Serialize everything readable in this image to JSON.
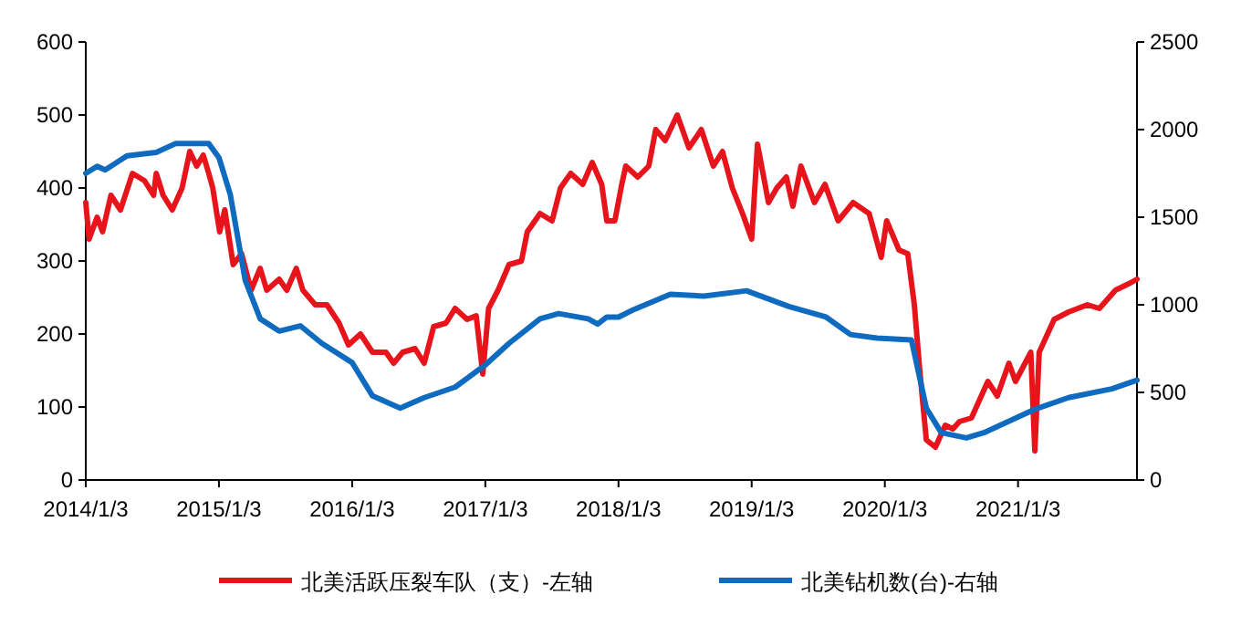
{
  "chart_data": {
    "type": "line",
    "legend": "bottom",
    "grid": false,
    "xlim": [
      "2014-01-03",
      "2021-11-25"
    ],
    "xticks": [
      {
        "value": "2014-01-03",
        "label": "2014/1/3"
      },
      {
        "value": "2015-01-03",
        "label": "2015/1/3"
      },
      {
        "value": "2016-01-03",
        "label": "2016/1/3"
      },
      {
        "value": "2017-01-03",
        "label": "2017/1/3"
      },
      {
        "value": "2018-01-03",
        "label": "2018/1/3"
      },
      {
        "value": "2019-01-03",
        "label": "2019/1/3"
      },
      {
        "value": "2020-01-03",
        "label": "2020/1/3"
      },
      {
        "value": "2021-01-03",
        "label": "2021/1/3"
      }
    ],
    "ylim": [
      0,
      600
    ],
    "yticks": [
      0,
      100,
      200,
      300,
      400,
      500,
      600
    ],
    "y2lim": [
      0,
      2500
    ],
    "y2ticks": [
      0,
      500,
      1000,
      1500,
      2000,
      2500
    ],
    "series": [
      {
        "name": "北美活跃压裂车队（支）-左轴",
        "color": "#e8141c",
        "x": [
          "2014-01-03",
          "2014-01-12",
          "2014-02-03",
          "2014-02-18",
          "2014-03-13",
          "2014-04-08",
          "2014-05-11",
          "2014-06-13",
          "2014-07-08",
          "2014-07-15",
          "2014-08-03",
          "2014-08-28",
          "2014-09-24",
          "2014-10-15",
          "2014-11-03",
          "2014-11-21",
          "2014-12-06",
          "2014-12-17",
          "2015-01-05",
          "2015-01-19",
          "2015-02-11",
          "2015-03-06",
          "2015-04-01",
          "2015-04-26",
          "2015-05-14",
          "2015-06-17",
          "2015-07-08",
          "2015-08-03",
          "2015-08-21",
          "2015-09-24",
          "2015-10-26",
          "2015-11-28",
          "2015-12-24",
          "2016-01-26",
          "2016-02-28",
          "2016-04-05",
          "2016-04-26",
          "2016-05-21",
          "2016-06-24",
          "2016-07-19",
          "2016-08-14",
          "2016-09-17",
          "2016-10-12",
          "2016-11-14",
          "2016-12-09",
          "2016-12-27",
          "2017-01-12",
          "2017-02-07",
          "2017-03-09",
          "2017-04-12",
          "2017-04-28",
          "2017-06-02",
          "2017-07-05",
          "2017-07-28",
          "2017-08-25",
          "2017-09-27",
          "2017-10-23",
          "2017-11-18",
          "2017-12-02",
          "2017-12-24",
          "2018-01-12",
          "2018-01-23",
          "2018-02-25",
          "2018-03-27",
          "2018-04-15",
          "2018-05-11",
          "2018-06-13",
          "2018-07-15",
          "2018-08-18",
          "2018-09-20",
          "2018-10-15",
          "2018-11-11",
          "2018-12-09",
          "2019-01-03",
          "2019-01-19",
          "2019-02-18",
          "2019-03-13",
          "2019-04-08",
          "2019-04-26",
          "2019-05-18",
          "2019-06-24",
          "2019-07-23",
          "2019-08-28",
          "2019-10-08",
          "2019-11-21",
          "2019-12-24",
          "2020-01-08",
          "2020-02-11",
          "2020-03-06",
          "2020-03-24",
          "2020-04-08",
          "2020-04-26",
          "2020-05-21",
          "2020-06-17",
          "2020-07-08",
          "2020-07-26",
          "2020-08-28",
          "2020-10-12",
          "2020-11-07",
          "2020-12-09",
          "2020-12-27",
          "2021-02-07",
          "2021-02-18",
          "2021-03-02",
          "2021-04-12",
          "2021-05-21",
          "2021-07-12",
          "2021-08-14",
          "2021-09-27",
          "2021-11-07",
          "2021-11-25"
        ],
        "values": [
          380,
          330,
          360,
          340,
          390,
          370,
          420,
          410,
          390,
          420,
          390,
          370,
          400,
          450,
          430,
          445,
          420,
          400,
          340,
          370,
          295,
          310,
          260,
          290,
          260,
          275,
          260,
          290,
          260,
          240,
          240,
          215,
          185,
          200,
          175,
          175,
          160,
          175,
          180,
          160,
          210,
          215,
          235,
          220,
          225,
          145,
          235,
          260,
          295,
          300,
          340,
          365,
          355,
          400,
          420,
          405,
          435,
          405,
          355,
          355,
          405,
          430,
          415,
          430,
          480,
          465,
          500,
          455,
          480,
          430,
          450,
          400,
          365,
          330,
          460,
          380,
          400,
          415,
          375,
          430,
          380,
          405,
          355,
          380,
          365,
          305,
          355,
          315,
          310,
          240,
          150,
          55,
          45,
          75,
          70,
          80,
          85,
          135,
          115,
          160,
          135,
          175,
          40,
          175,
          220,
          230,
          240,
          235,
          260,
          270,
          275
        ]
      },
      {
        "name": "北美钻机数(台)-右轴",
        "color": "#0f6bbf",
        "axis": "y2",
        "x": [
          "2014-01-03",
          "2014-02-03",
          "2014-02-25",
          "2014-04-26",
          "2014-07-15",
          "2014-09-06",
          "2014-12-06",
          "2015-01-03",
          "2015-02-03",
          "2015-03-16",
          "2015-04-26",
          "2015-06-17",
          "2015-08-14",
          "2015-10-12",
          "2016-01-03",
          "2016-02-28",
          "2016-05-14",
          "2016-07-19",
          "2016-10-12",
          "2017-01-05",
          "2017-03-09",
          "2017-06-02",
          "2017-07-23",
          "2017-10-12",
          "2017-11-07",
          "2017-12-02",
          "2018-01-03",
          "2018-02-11",
          "2018-05-25",
          "2018-08-25",
          "2018-12-20",
          "2019-04-15",
          "2019-07-26",
          "2019-10-01",
          "2019-12-13",
          "2020-03-16",
          "2020-04-26",
          "2020-06-06",
          "2020-08-14",
          "2020-10-01",
          "2021-02-14",
          "2021-05-21",
          "2021-09-17",
          "2021-11-25"
        ],
        "values": [
          1750,
          1790,
          1770,
          1850,
          1870,
          1920,
          1920,
          1840,
          1630,
          1140,
          920,
          850,
          880,
          780,
          670,
          480,
          410,
          470,
          530,
          660,
          780,
          920,
          950,
          920,
          890,
          930,
          930,
          970,
          1060,
          1050,
          1080,
          990,
          930,
          830,
          810,
          800,
          410,
          270,
          240,
          270,
          400,
          470,
          520,
          570
        ]
      }
    ]
  }
}
